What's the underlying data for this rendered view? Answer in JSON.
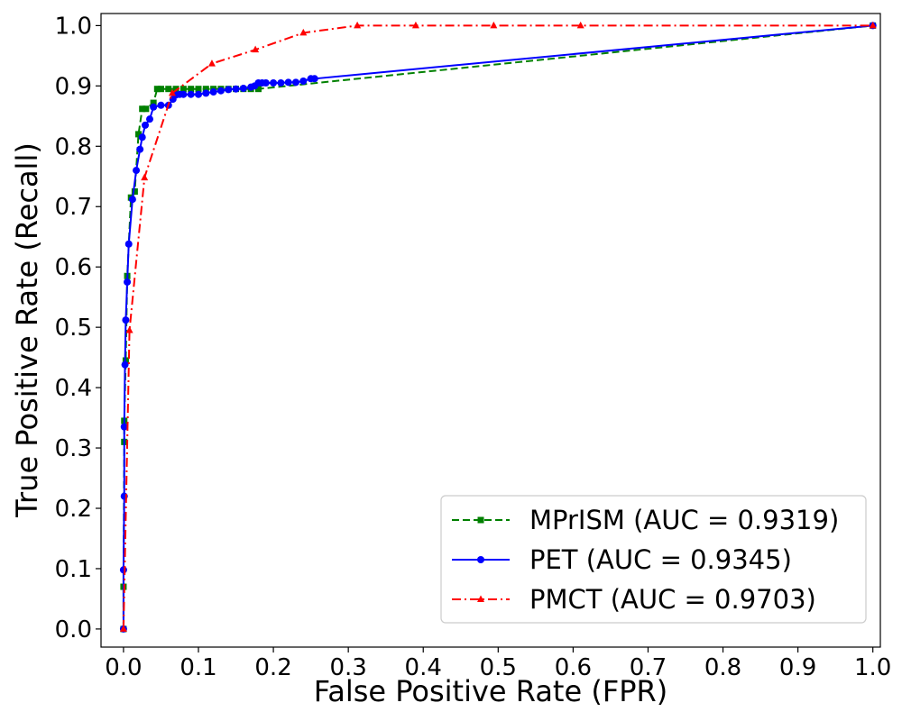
{
  "chart_data": {
    "type": "line",
    "xlabel": "False Positive Rate (FPR)",
    "ylabel": "True Positive Rate (Recall)",
    "xlim": [
      -0.03,
      1.01
    ],
    "ylim": [
      -0.03,
      1.02
    ],
    "xticks": [
      "0.0",
      "0.1",
      "0.2",
      "0.3",
      "0.4",
      "0.5",
      "0.6",
      "0.7",
      "0.8",
      "0.9",
      "1.0"
    ],
    "yticks": [
      "0.0",
      "0.1",
      "0.2",
      "0.3",
      "0.4",
      "0.5",
      "0.6",
      "0.7",
      "0.8",
      "0.9",
      "1.0"
    ],
    "grid": false,
    "legend_position": "bottom-right",
    "series": [
      {
        "name": "MPrISM (AUC = 0.9319)",
        "color": "#008000",
        "dash": "dashed",
        "marker": "square",
        "x": [
          0.0,
          0.0,
          0.001,
          0.001,
          0.003,
          0.005,
          0.01,
          0.015,
          0.02,
          0.025,
          0.03,
          0.04,
          0.045,
          0.05,
          0.06,
          0.07,
          0.08,
          0.09,
          0.1,
          0.11,
          0.12,
          0.13,
          0.14,
          0.15,
          0.16,
          0.17,
          0.18,
          1.0
        ],
        "y": [
          0.0,
          0.07,
          0.31,
          0.345,
          0.445,
          0.585,
          0.715,
          0.725,
          0.82,
          0.862,
          0.862,
          0.872,
          0.895,
          0.895,
          0.895,
          0.895,
          0.895,
          0.895,
          0.895,
          0.895,
          0.895,
          0.895,
          0.895,
          0.895,
          0.895,
          0.895,
          0.895,
          1.0
        ]
      },
      {
        "name": "PET (AUC = 0.9345)",
        "color": "#0000ff",
        "dash": "solid",
        "marker": "circle",
        "x": [
          0.0,
          0.0,
          0.001,
          0.001,
          0.002,
          0.003,
          0.005,
          0.007,
          0.012,
          0.017,
          0.022,
          0.025,
          0.029,
          0.035,
          0.04,
          0.05,
          0.06,
          0.066,
          0.07,
          0.075,
          0.08,
          0.09,
          0.1,
          0.11,
          0.12,
          0.13,
          0.14,
          0.15,
          0.16,
          0.17,
          0.175,
          0.18,
          0.185,
          0.19,
          0.2,
          0.21,
          0.22,
          0.23,
          0.24,
          0.25,
          0.255,
          1.0
        ],
        "y": [
          0.0,
          0.098,
          0.22,
          0.335,
          0.438,
          0.512,
          0.575,
          0.638,
          0.712,
          0.76,
          0.795,
          0.815,
          0.835,
          0.845,
          0.865,
          0.868,
          0.868,
          0.878,
          0.885,
          0.886,
          0.886,
          0.886,
          0.886,
          0.888,
          0.89,
          0.892,
          0.894,
          0.895,
          0.896,
          0.898,
          0.9,
          0.905,
          0.905,
          0.905,
          0.905,
          0.905,
          0.906,
          0.906,
          0.908,
          0.912,
          0.912,
          1.0
        ]
      },
      {
        "name": "PMCT (AUC = 0.9703)",
        "color": "#ff0000",
        "dash": "dashdot",
        "marker": "triangle",
        "x": [
          0.0,
          0.008,
          0.028,
          0.065,
          0.118,
          0.176,
          0.24,
          0.312,
          0.39,
          0.494,
          0.61,
          1.0
        ],
        "y": [
          0.0,
          0.495,
          0.748,
          0.888,
          0.937,
          0.96,
          0.988,
          1.0,
          1.0,
          1.0,
          1.0,
          1.0
        ]
      }
    ]
  }
}
